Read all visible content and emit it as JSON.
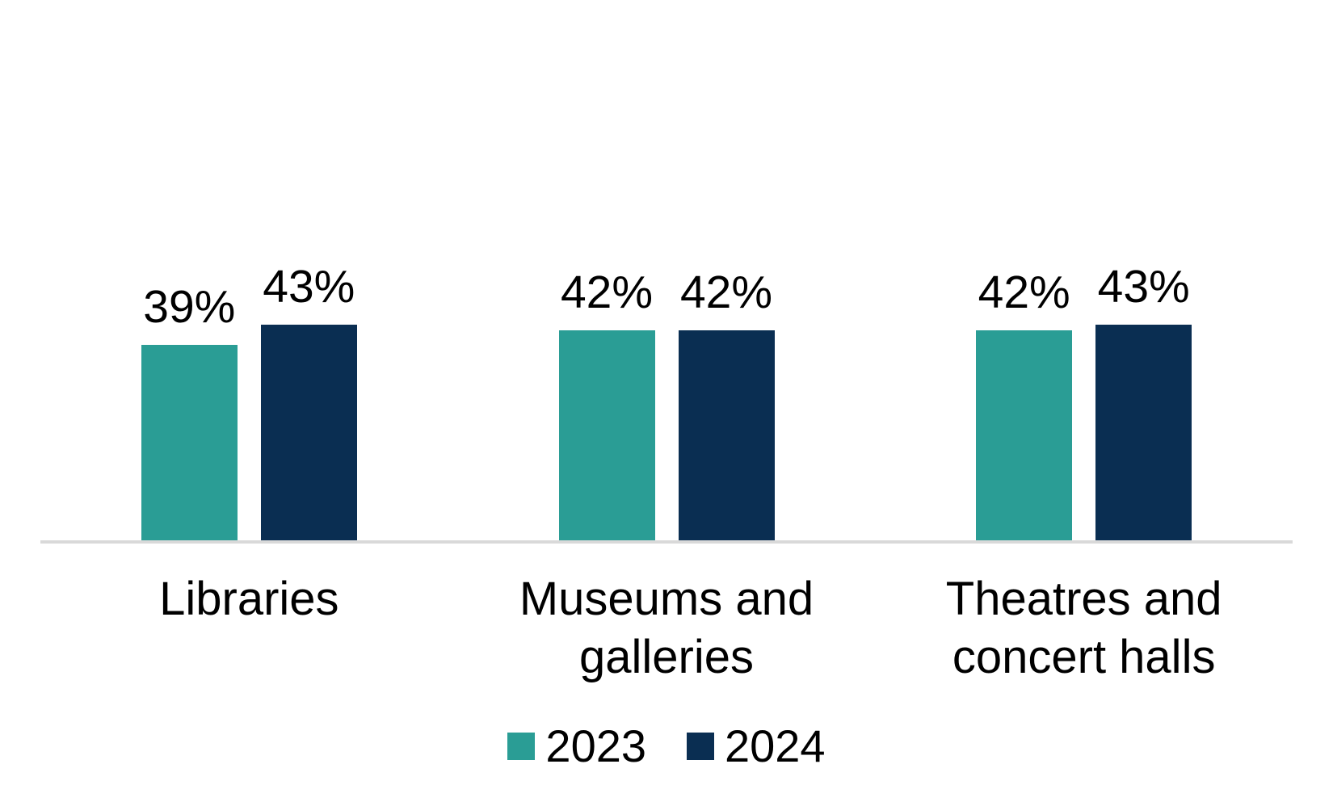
{
  "chart_data": {
    "type": "bar",
    "title": "",
    "xlabel": "",
    "ylabel": "",
    "ylim": [
      0,
      100
    ],
    "grid": false,
    "legend_position": "bottom",
    "value_suffix": "%",
    "background_color": "#ffffff",
    "axis_line_color": "#d9d9d9",
    "text_color": "#000000",
    "categories": [
      "Libraries",
      "Museums and galleries",
      "Theatres and concert halls"
    ],
    "series": [
      {
        "name": "2023",
        "color": "#2a9d95",
        "values": [
          39,
          42,
          42
        ],
        "labels": [
          "39%",
          "42%",
          "42%"
        ]
      },
      {
        "name": "2024",
        "color": "#0a2e52",
        "values": [
          43,
          42,
          43
        ],
        "labels": [
          "43%",
          "42%",
          "43%"
        ]
      }
    ]
  },
  "legend": {
    "items": [
      {
        "label": "2023",
        "color": "#2a9d95"
      },
      {
        "label": "2024",
        "color": "#0a2e52"
      }
    ]
  }
}
